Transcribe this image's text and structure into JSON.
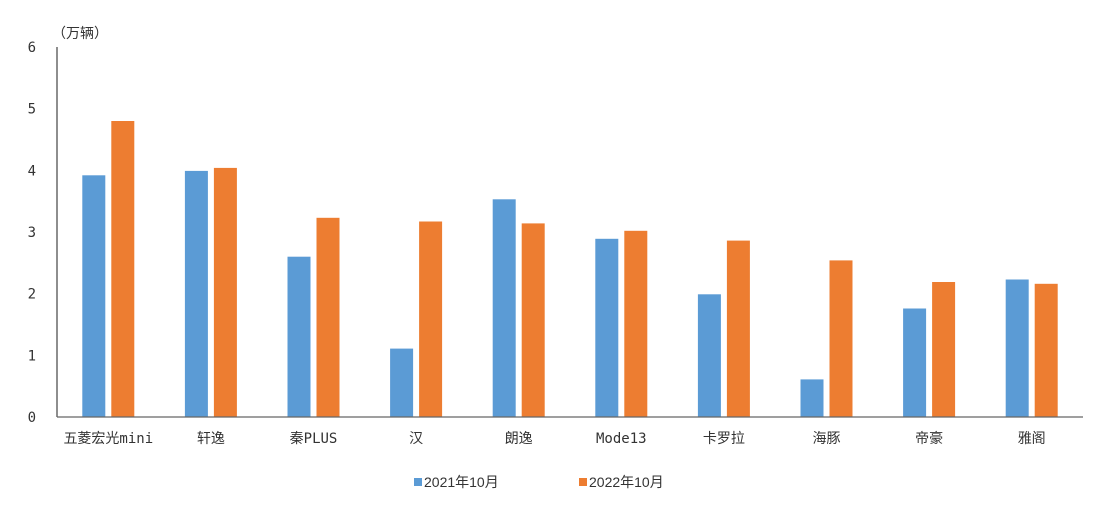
{
  "chart_data": {
    "type": "bar",
    "unit_label": "（万辆）",
    "categories": [
      "五菱宏光mini",
      "轩逸",
      "秦PLUS",
      "汉",
      "朗逸",
      "Mode13",
      "卡罗拉",
      "海豚",
      "帝豪",
      "雅阁"
    ],
    "series": [
      {
        "name": "2021年10月",
        "color": "#5B9BD5",
        "values": [
          3.92,
          3.99,
          2.6,
          1.11,
          3.53,
          2.89,
          1.99,
          0.61,
          1.76,
          2.23
        ]
      },
      {
        "name": "2022年10月",
        "color": "#ED7D31",
        "values": [
          4.8,
          4.04,
          3.23,
          3.17,
          3.14,
          3.02,
          2.86,
          2.54,
          2.19,
          2.16
        ]
      }
    ],
    "ylim": [
      0,
      6
    ],
    "yticks": [
      0,
      1,
      2,
      3,
      4,
      5,
      6
    ],
    "grid": false,
    "legend_position": "bottom-center"
  }
}
